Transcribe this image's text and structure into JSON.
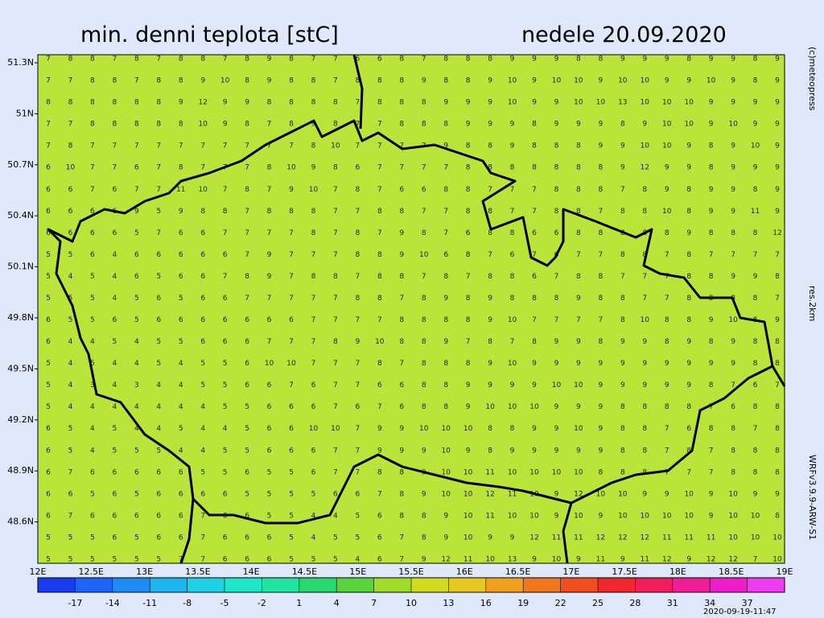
{
  "header": {
    "title": "min. denni teplota [stC]",
    "date": "nedele 20.09.2020"
  },
  "side_texts": {
    "copyright": "(c)meteopress",
    "resolution": "res.2km",
    "model": "WRFv3.9.9-ARW-S1",
    "timestamp": "2020-09-19-11:47"
  },
  "latitude_labels": [
    "51.3N",
    "51N",
    "50.7N",
    "50.4N",
    "50.1N",
    "49.8N",
    "49.5N",
    "49.2N",
    "48.9N",
    "48.6N"
  ],
  "longitude_labels": [
    "12E",
    "12.5E",
    "13E",
    "13.5E",
    "14E",
    "14.5E",
    "15E",
    "15.5E",
    "16E",
    "16.5E",
    "17E",
    "17.5E",
    "18E",
    "18.5E",
    "19E"
  ],
  "colorbar": {
    "ticks": [
      -17,
      -14,
      -11,
      -8,
      -5,
      -2,
      1,
      4,
      7,
      10,
      13,
      16,
      19,
      22,
      25,
      28,
      31,
      34,
      37
    ],
    "colors": [
      "#1a3cf0",
      "#1e64f5",
      "#1e8cf5",
      "#1eb4f0",
      "#1ed2e6",
      "#1ee6c8",
      "#1ee6a0",
      "#2ad66e",
      "#5ad23c",
      "#a0dc28",
      "#d2dc1e",
      "#e6c81e",
      "#f0a01e",
      "#f0781e",
      "#f0501e",
      "#f02832",
      "#f01e5a",
      "#f01e96",
      "#f01ec8",
      "#f03cf0"
    ]
  },
  "temperature_grid": [
    [
      7,
      8,
      8,
      7,
      8,
      7,
      8,
      8,
      7,
      8,
      9,
      8,
      7,
      7,
      6,
      6,
      8,
      7,
      8,
      8,
      8,
      9,
      9,
      9,
      8,
      8,
      9,
      9,
      9,
      8,
      9,
      9,
      8,
      9
    ],
    [
      7,
      7,
      8,
      8,
      7,
      8,
      8,
      9,
      10,
      8,
      9,
      8,
      8,
      7,
      8,
      8,
      8,
      9,
      8,
      8,
      9,
      10,
      9,
      10,
      10,
      9,
      10,
      10,
      9,
      9,
      10,
      9,
      8,
      9
    ],
    [
      8,
      8,
      8,
      8,
      8,
      8,
      9,
      12,
      9,
      9,
      8,
      8,
      8,
      8,
      7,
      8,
      8,
      8,
      9,
      9,
      9,
      10,
      9,
      9,
      10,
      10,
      13,
      10,
      10,
      10,
      9,
      9,
      9,
      9
    ],
    [
      7,
      7,
      8,
      8,
      8,
      8,
      8,
      10,
      9,
      8,
      7,
      8,
      9,
      8,
      7,
      7,
      8,
      8,
      8,
      9,
      9,
      9,
      8,
      9,
      9,
      9,
      8,
      9,
      10,
      10,
      9,
      10,
      9,
      9
    ],
    [
      7,
      8,
      7,
      7,
      7,
      7,
      7,
      7,
      7,
      7,
      7,
      7,
      8,
      10,
      7,
      7,
      7,
      7,
      9,
      8,
      8,
      9,
      8,
      8,
      8,
      9,
      9,
      10,
      10,
      9,
      8,
      9,
      10,
      9
    ],
    [
      6,
      10,
      7,
      7,
      6,
      7,
      8,
      7,
      7,
      7,
      8,
      10,
      9,
      8,
      6,
      7,
      7,
      7,
      7,
      8,
      8,
      8,
      8,
      8,
      8,
      8,
      9,
      12,
      9,
      9,
      8,
      9,
      9,
      9
    ],
    [
      6,
      6,
      7,
      6,
      7,
      7,
      11,
      10,
      7,
      8,
      7,
      9,
      10,
      7,
      8,
      7,
      6,
      6,
      8,
      8,
      7,
      7,
      7,
      8,
      8,
      8,
      7,
      8,
      9,
      8,
      9,
      9,
      8,
      9
    ],
    [
      6,
      6,
      6,
      6,
      9,
      5,
      9,
      8,
      8,
      7,
      8,
      8,
      8,
      7,
      7,
      8,
      8,
      7,
      7,
      8,
      8,
      7,
      7,
      8,
      8,
      7,
      8,
      8,
      10,
      8,
      9,
      9,
      11,
      9
    ],
    [
      6,
      6,
      6,
      6,
      5,
      7,
      6,
      6,
      7,
      7,
      7,
      7,
      8,
      7,
      8,
      7,
      9,
      8,
      7,
      6,
      8,
      8,
      6,
      6,
      8,
      8,
      8,
      8,
      8,
      9,
      8,
      8,
      8,
      12
    ],
    [
      5,
      5,
      6,
      4,
      6,
      6,
      6,
      6,
      6,
      7,
      9,
      7,
      7,
      7,
      8,
      8,
      9,
      10,
      6,
      8,
      7,
      6,
      7,
      6,
      7,
      7,
      8,
      8,
      7,
      8,
      7,
      7,
      7,
      7
    ],
    [
      5,
      4,
      5,
      4,
      6,
      5,
      6,
      6,
      7,
      8,
      9,
      7,
      8,
      8,
      7,
      8,
      8,
      7,
      8,
      7,
      8,
      8,
      6,
      7,
      8,
      8,
      7,
      7,
      7,
      8,
      8,
      9,
      9,
      8
    ],
    [
      5,
      5,
      5,
      4,
      5,
      6,
      5,
      6,
      6,
      7,
      7,
      7,
      7,
      7,
      8,
      8,
      7,
      8,
      9,
      8,
      9,
      8,
      8,
      8,
      9,
      8,
      8,
      7,
      7,
      8,
      8,
      8,
      8,
      7
    ],
    [
      6,
      5,
      5,
      6,
      5,
      6,
      6,
      6,
      6,
      6,
      6,
      6,
      7,
      7,
      7,
      7,
      8,
      8,
      8,
      8,
      9,
      10,
      7,
      7,
      7,
      7,
      8,
      10,
      8,
      8,
      9,
      10,
      8,
      9
    ],
    [
      6,
      4,
      4,
      5,
      4,
      5,
      5,
      6,
      6,
      6,
      7,
      7,
      7,
      8,
      9,
      10,
      8,
      8,
      9,
      7,
      8,
      7,
      8,
      9,
      9,
      8,
      9,
      9,
      8,
      9,
      8,
      9,
      8,
      8
    ],
    [
      5,
      4,
      5,
      4,
      4,
      5,
      4,
      5,
      5,
      6,
      10,
      10,
      7,
      7,
      7,
      8,
      7,
      8,
      8,
      8,
      9,
      10,
      9,
      9,
      9,
      9,
      9,
      9,
      9,
      9,
      9,
      9,
      8,
      8
    ],
    [
      5,
      4,
      3,
      4,
      3,
      4,
      4,
      5,
      5,
      6,
      6,
      7,
      6,
      7,
      7,
      6,
      6,
      8,
      8,
      9,
      9,
      9,
      9,
      10,
      10,
      9,
      9,
      9,
      9,
      9,
      8,
      7,
      6,
      7
    ],
    [
      5,
      4,
      4,
      4,
      4,
      4,
      4,
      4,
      5,
      5,
      6,
      6,
      6,
      7,
      6,
      7,
      6,
      8,
      8,
      9,
      10,
      10,
      10,
      9,
      9,
      9,
      8,
      8,
      8,
      8,
      7,
      6,
      8,
      8
    ],
    [
      6,
      5,
      4,
      5,
      4,
      4,
      5,
      4,
      4,
      5,
      6,
      6,
      10,
      10,
      7,
      9,
      9,
      10,
      10,
      10,
      8,
      8,
      9,
      9,
      10,
      9,
      8,
      8,
      7,
      6,
      8,
      8,
      7,
      8
    ],
    [
      6,
      5,
      4,
      5,
      5,
      5,
      4,
      4,
      5,
      5,
      6,
      6,
      6,
      7,
      7,
      9,
      9,
      9,
      10,
      9,
      8,
      9,
      9,
      9,
      9,
      9,
      8,
      8,
      7,
      8,
      7,
      8,
      8,
      8
    ],
    [
      6,
      7,
      6,
      6,
      6,
      6,
      6,
      5,
      5,
      6,
      5,
      5,
      6,
      7,
      7,
      8,
      8,
      9,
      10,
      10,
      11,
      10,
      10,
      10,
      10,
      8,
      8,
      8,
      7,
      7,
      7,
      8,
      8,
      8
    ],
    [
      6,
      6,
      5,
      6,
      5,
      6,
      6,
      6,
      6,
      5,
      5,
      5,
      5,
      6,
      6,
      7,
      8,
      9,
      10,
      10,
      12,
      11,
      10,
      9,
      12,
      10,
      10,
      9,
      9,
      10,
      9,
      10,
      9,
      9
    ],
    [
      6,
      7,
      6,
      6,
      6,
      6,
      6,
      7,
      6,
      6,
      5,
      5,
      4,
      4,
      5,
      6,
      8,
      8,
      9,
      10,
      11,
      10,
      10,
      9,
      10,
      9,
      10,
      10,
      10,
      10,
      9,
      10,
      10,
      8
    ],
    [
      5,
      5,
      5,
      6,
      5,
      6,
      6,
      7,
      6,
      6,
      6,
      5,
      4,
      5,
      5,
      6,
      7,
      8,
      9,
      10,
      9,
      9,
      12,
      11,
      11,
      12,
      12,
      12,
      11,
      11,
      11,
      10,
      10,
      10
    ],
    [
      5,
      5,
      5,
      5,
      5,
      5,
      7,
      7,
      6,
      6,
      6,
      5,
      5,
      5,
      4,
      6,
      7,
      9,
      12,
      11,
      10,
      13,
      9,
      10,
      9,
      11,
      9,
      11,
      12,
      9,
      12,
      12,
      7,
      10
    ]
  ]
}
